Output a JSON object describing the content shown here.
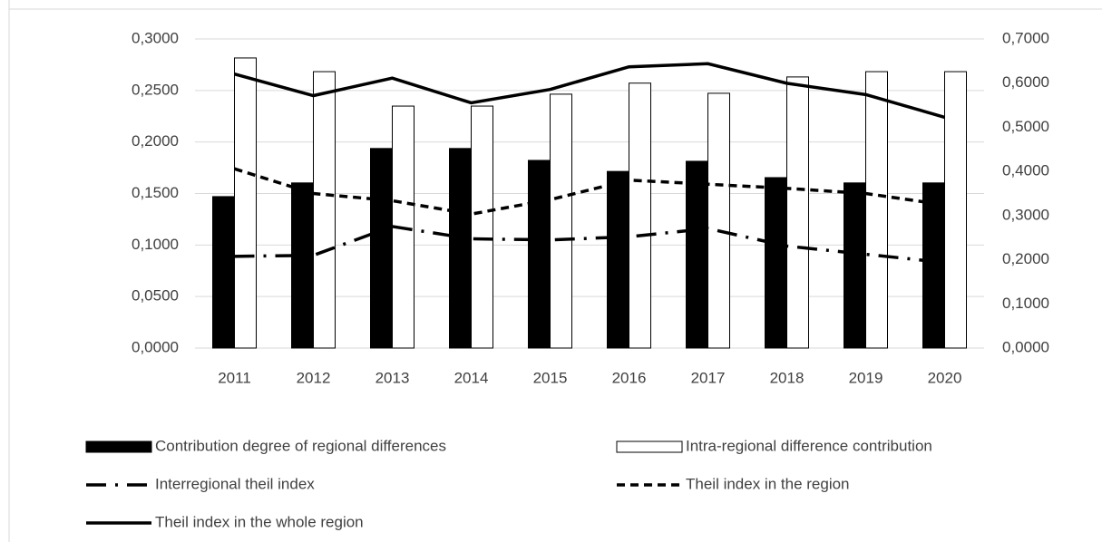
{
  "chart_data": {
    "type": "bar-line",
    "categories": [
      "2011",
      "2012",
      "2013",
      "2014",
      "2015",
      "2016",
      "2017",
      "2018",
      "2019",
      "2020"
    ],
    "series": [
      {
        "name": "Contribution degree of regional differences",
        "type": "bar",
        "axis": "y2",
        "color": "#000000",
        "values": [
          0.343,
          0.374,
          0.452,
          0.452,
          0.425,
          0.4,
          0.423,
          0.386,
          0.374,
          0.374
        ]
      },
      {
        "name": "Intra-regional difference contribution",
        "type": "bar",
        "axis": "y2",
        "color": "#ffffff",
        "values": [
          0.657,
          0.626,
          0.548,
          0.548,
          0.575,
          0.6,
          0.577,
          0.614,
          0.626,
          0.626
        ]
      },
      {
        "name": "Interregional theil index",
        "type": "line",
        "line_style": "dashdot",
        "color": "#000000",
        "values": [
          0.089,
          0.09,
          0.118,
          0.106,
          0.105,
          0.108,
          0.116,
          0.099,
          0.091,
          0.083
        ]
      },
      {
        "name": "Theil index in the region",
        "type": "line",
        "line_style": "dashed",
        "color": "#000000",
        "values": [
          0.174,
          0.15,
          0.143,
          0.13,
          0.144,
          0.163,
          0.159,
          0.155,
          0.15,
          0.139
        ]
      },
      {
        "name": "Theil index in the whole region",
        "type": "line",
        "line_style": "solid",
        "color": "#000000",
        "values": [
          0.266,
          0.245,
          0.262,
          0.238,
          0.251,
          0.273,
          0.276,
          0.257,
          0.246,
          0.224
        ]
      }
    ],
    "ylim": [
      0,
      0.3
    ],
    "yticks": [
      {
        "value": 0,
        "label": "0,0000"
      },
      {
        "value": 0.05,
        "label": "0,0500"
      },
      {
        "value": 0.1,
        "label": "0,1000"
      },
      {
        "value": 0.15,
        "label": "0,1500"
      },
      {
        "value": 0.2,
        "label": "0,2000"
      },
      {
        "value": 0.25,
        "label": "0,2500"
      },
      {
        "value": 0.3,
        "label": "0,3000"
      }
    ],
    "y2lim": [
      0,
      0.7
    ],
    "y2ticks": [
      {
        "value": 0,
        "label": "0,0000"
      },
      {
        "value": 0.1,
        "label": "0,1000"
      },
      {
        "value": 0.2,
        "label": "0,2000"
      },
      {
        "value": 0.3,
        "label": "0,3000"
      },
      {
        "value": 0.4,
        "label": "0,4000"
      },
      {
        "value": 0.5,
        "label": "0,5000"
      },
      {
        "value": 0.6,
        "label": "0,6000"
      },
      {
        "value": 0.7,
        "label": "0,7000"
      }
    ],
    "grid": true,
    "legend": "bottom"
  }
}
